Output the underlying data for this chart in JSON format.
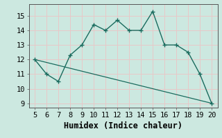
{
  "x": [
    5,
    6,
    7,
    8,
    9,
    10,
    11,
    12,
    13,
    14,
    15,
    16,
    17,
    18,
    19,
    20
  ],
  "y": [
    12,
    11,
    10.5,
    12.3,
    13,
    14.4,
    14,
    14.7,
    14,
    14,
    15.3,
    13,
    13,
    12.5,
    11,
    9
  ],
  "line_x": [
    5,
    20
  ],
  "line_y": [
    12,
    9
  ],
  "xlabel": "Humidex (Indice chaleur)",
  "xlim": [
    4.5,
    20.5
  ],
  "ylim": [
    8.7,
    15.8
  ],
  "yticks": [
    9,
    10,
    11,
    12,
    13,
    14,
    15
  ],
  "xticks": [
    5,
    6,
    7,
    8,
    9,
    10,
    11,
    12,
    13,
    14,
    15,
    16,
    17,
    18,
    19,
    20
  ],
  "line_color": "#1a6b5e",
  "bg_color": "#cce8e0",
  "grid_color": "#b0d8d0",
  "tick_label_fontsize": 7.5,
  "xlabel_fontsize": 8.5
}
